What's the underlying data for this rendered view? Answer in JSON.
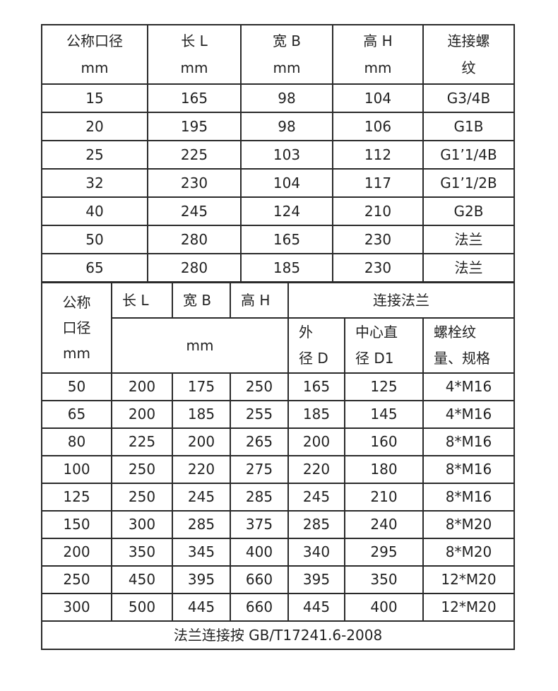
{
  "table1": {
    "headers": [
      "公称口径\nmm",
      "长 L\nmm",
      "宽 B\nmm",
      "高 H\nmm",
      "连接螺\n纹"
    ],
    "rows": [
      [
        "15",
        "165",
        "98",
        "104",
        "G3/4B"
      ],
      [
        "20",
        "195",
        "98",
        "106",
        "G1B"
      ],
      [
        "25",
        "225",
        "103",
        "112",
        "G1’1/4B"
      ],
      [
        "32",
        "230",
        "104",
        "117",
        "G1’1/2B"
      ],
      [
        "40",
        "245",
        "124",
        "210",
        "G2B"
      ],
      [
        "50",
        "280",
        "165",
        "230",
        "法兰"
      ],
      [
        "65",
        "280",
        "185",
        "230",
        "法兰"
      ]
    ]
  },
  "table2": {
    "header_row1": [
      "公称\n口径\nmm",
      "长 L",
      "宽 B",
      "高 H",
      "连接法兰"
    ],
    "header_row2": [
      "mm",
      "外\n径 D",
      "中心直\n径 D1",
      "螺栓纹\n量、规格"
    ],
    "rows": [
      [
        "50",
        "200",
        "175",
        "250",
        "165",
        "125",
        "4*M16"
      ],
      [
        "65",
        "200",
        "185",
        "255",
        "185",
        "145",
        "4*M16"
      ],
      [
        "80",
        "225",
        "200",
        "265",
        "200",
        "160",
        "8*M16"
      ],
      [
        "100",
        "250",
        "220",
        "275",
        "220",
        "180",
        "8*M16"
      ],
      [
        "125",
        "250",
        "245",
        "285",
        "245",
        "210",
        "8*M16"
      ],
      [
        "150",
        "300",
        "285",
        "375",
        "285",
        "240",
        "8*M20"
      ],
      [
        "200",
        "350",
        "345",
        "400",
        "340",
        "295",
        "8*M20"
      ],
      [
        "250",
        "450",
        "395",
        "660",
        "395",
        "350",
        "12*M20"
      ],
      [
        "300",
        "500",
        "445",
        "660",
        "445",
        "400",
        "12*M20"
      ]
    ],
    "footer": "法兰连接按 GB/T17241.6-2008"
  }
}
